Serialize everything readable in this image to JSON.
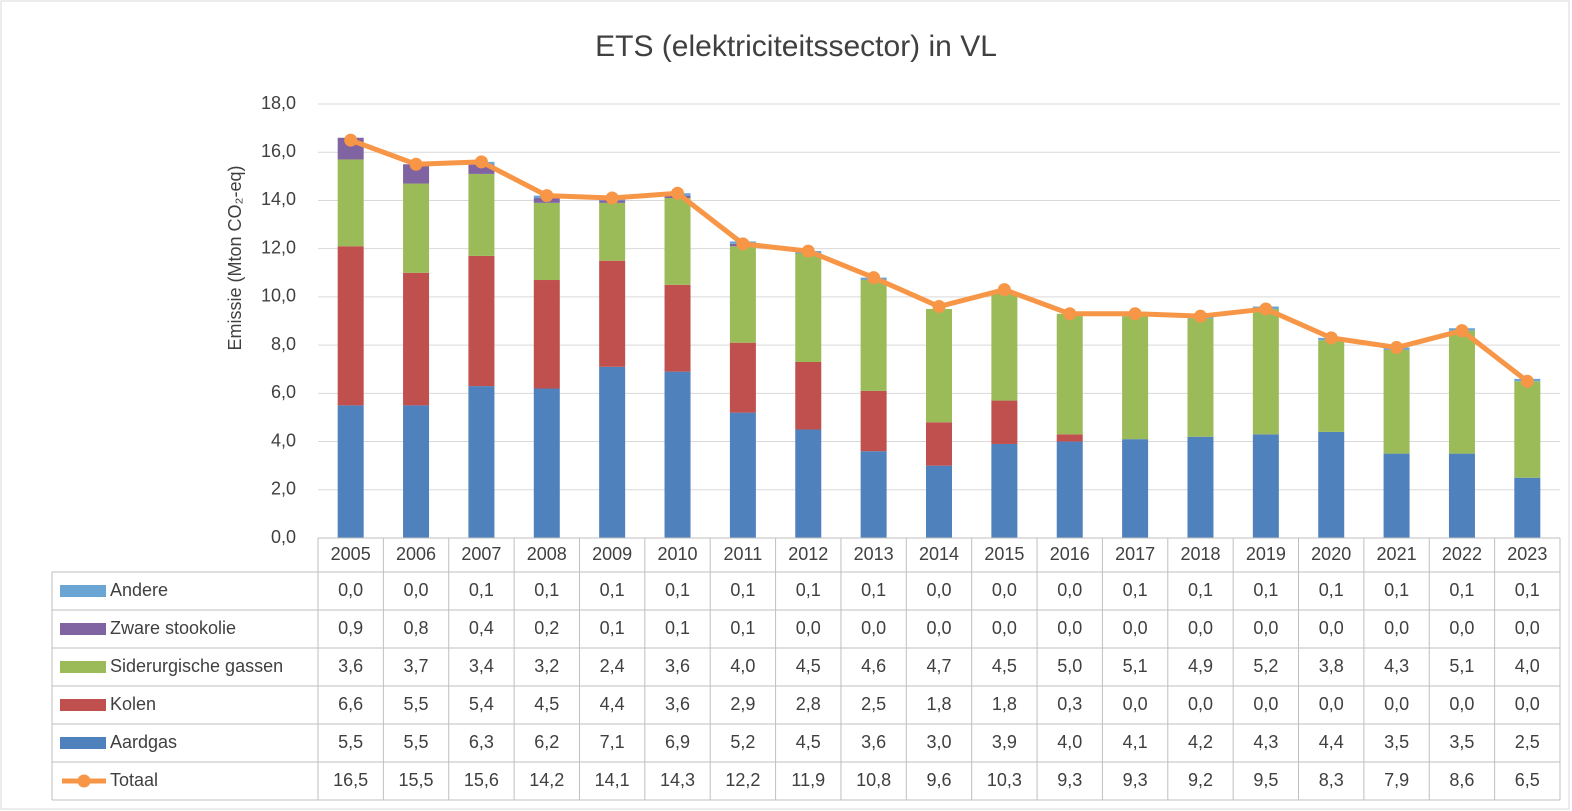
{
  "chart_data": {
    "type": "bar",
    "stacked": true,
    "title": "ETS (elektriciteitssector) in VL",
    "y_label": "Emissie (Mton CO₂-eq)",
    "categories": [
      "2005",
      "2006",
      "2007",
      "2008",
      "2009",
      "2010",
      "2011",
      "2012",
      "2013",
      "2014",
      "2015",
      "2016",
      "2017",
      "2018",
      "2019",
      "2020",
      "2021",
      "2022",
      "2023"
    ],
    "ylim": [
      0,
      18
    ],
    "yticks": [
      {
        "value": 0,
        "label": "0,0"
      },
      {
        "value": 2,
        "label": "2,0"
      },
      {
        "value": 4,
        "label": "4,0"
      },
      {
        "value": 6,
        "label": "6,0"
      },
      {
        "value": 8,
        "label": "8,0"
      },
      {
        "value": 10,
        "label": "10,0"
      },
      {
        "value": 12,
        "label": "12,0"
      },
      {
        "value": 14,
        "label": "14,0"
      },
      {
        "value": 16,
        "label": "16,0"
      },
      {
        "value": 18,
        "label": "18,0"
      }
    ],
    "grid": true,
    "series": [
      {
        "name": "Andere",
        "color": "#6ba5d3",
        "values": [
          0.0,
          0.0,
          0.1,
          0.1,
          0.1,
          0.1,
          0.1,
          0.1,
          0.1,
          0.0,
          0.0,
          0.0,
          0.1,
          0.1,
          0.1,
          0.1,
          0.1,
          0.1,
          0.1
        ],
        "value_labels": [
          "0,0",
          "0,0",
          "0,1",
          "0,1",
          "0,1",
          "0,1",
          "0,1",
          "0,1",
          "0,1",
          "0,0",
          "0,0",
          "0,0",
          "0,1",
          "0,1",
          "0,1",
          "0,1",
          "0,1",
          "0,1",
          "0,1"
        ]
      },
      {
        "name": "Zware stookolie",
        "color": "#8064a2",
        "values": [
          0.9,
          0.8,
          0.4,
          0.2,
          0.1,
          0.1,
          0.1,
          0.0,
          0.0,
          0.0,
          0.0,
          0.0,
          0.0,
          0.0,
          0.0,
          0.0,
          0.0,
          0.0,
          0.0
        ],
        "value_labels": [
          "0,9",
          "0,8",
          "0,4",
          "0,2",
          "0,1",
          "0,1",
          "0,1",
          "0,0",
          "0,0",
          "0,0",
          "0,0",
          "0,0",
          "0,0",
          "0,0",
          "0,0",
          "0,0",
          "0,0",
          "0,0",
          "0,0"
        ]
      },
      {
        "name": "Siderurgische gassen",
        "color": "#9bbb59",
        "values": [
          3.6,
          3.7,
          3.4,
          3.2,
          2.4,
          3.6,
          4.0,
          4.5,
          4.6,
          4.7,
          4.5,
          5.0,
          5.1,
          4.9,
          5.2,
          3.8,
          4.3,
          5.1,
          4.0
        ],
        "value_labels": [
          "3,6",
          "3,7",
          "3,4",
          "3,2",
          "2,4",
          "3,6",
          "4,0",
          "4,5",
          "4,6",
          "4,7",
          "4,5",
          "5,0",
          "5,1",
          "4,9",
          "5,2",
          "3,8",
          "4,3",
          "5,1",
          "4,0"
        ]
      },
      {
        "name": "Kolen",
        "color": "#c0504d",
        "values": [
          6.6,
          5.5,
          5.4,
          4.5,
          4.4,
          3.6,
          2.9,
          2.8,
          2.5,
          1.8,
          1.8,
          0.3,
          0.0,
          0.0,
          0.0,
          0.0,
          0.0,
          0.0,
          0.0
        ],
        "value_labels": [
          "6,6",
          "5,5",
          "5,4",
          "4,5",
          "4,4",
          "3,6",
          "2,9",
          "2,8",
          "2,5",
          "1,8",
          "1,8",
          "0,3",
          "0,0",
          "0,0",
          "0,0",
          "0,0",
          "0,0",
          "0,0",
          "0,0"
        ]
      },
      {
        "name": "Aardgas",
        "color": "#4f81bd",
        "values": [
          5.5,
          5.5,
          6.3,
          6.2,
          7.1,
          6.9,
          5.2,
          4.5,
          3.6,
          3.0,
          3.9,
          4.0,
          4.1,
          4.2,
          4.3,
          4.4,
          3.5,
          3.5,
          2.5
        ],
        "value_labels": [
          "5,5",
          "5,5",
          "6,3",
          "6,2",
          "7,1",
          "6,9",
          "5,2",
          "4,5",
          "3,6",
          "3,0",
          "3,9",
          "4,0",
          "4,1",
          "4,2",
          "4,3",
          "4,4",
          "3,5",
          "3,5",
          "2,5"
        ]
      },
      {
        "name": "Totaal",
        "color": "#f79646",
        "type": "line",
        "values": [
          16.5,
          15.5,
          15.6,
          14.2,
          14.1,
          14.3,
          12.2,
          11.9,
          10.8,
          9.6,
          10.3,
          9.3,
          9.3,
          9.2,
          9.5,
          8.3,
          7.9,
          8.6,
          6.5
        ],
        "value_labels": [
          "16,5",
          "15,5",
          "15,6",
          "14,2",
          "14,1",
          "14,3",
          "12,2",
          "11,9",
          "10,8",
          "9,6",
          "10,3",
          "9,3",
          "9,3",
          "9,2",
          "9,5",
          "8,3",
          "7,9",
          "8,6",
          "6,5"
        ]
      }
    ]
  }
}
